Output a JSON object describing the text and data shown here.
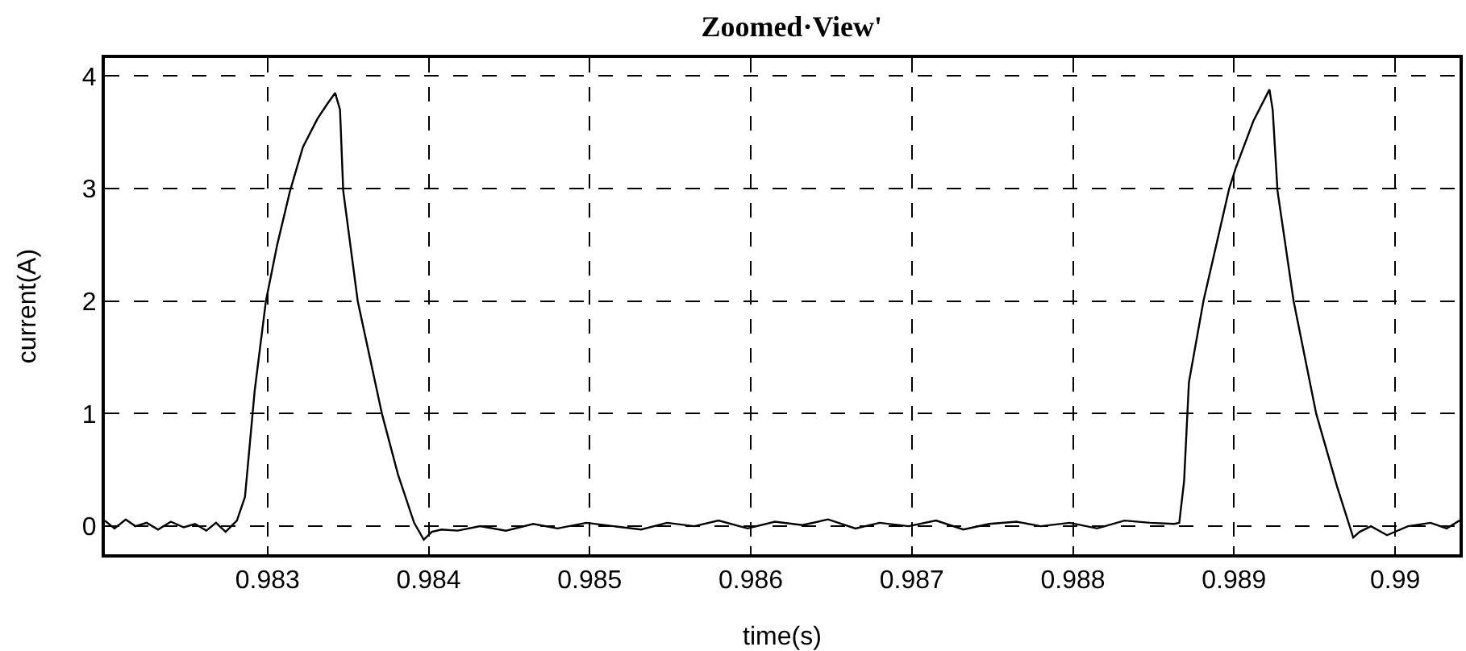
{
  "chart_data": {
    "type": "line",
    "title": "Zoomed·View'",
    "xlabel": "time(s)",
    "ylabel": "current(A)",
    "xlim": [
      0.98199,
      0.9904
    ],
    "ylim": [
      -0.25,
      4.16
    ],
    "xticks": [
      0.983,
      0.984,
      0.985,
      0.986,
      0.987,
      0.988,
      0.989,
      0.99
    ],
    "yticks": [
      0,
      1,
      2,
      3,
      4
    ],
    "grid": true,
    "line_style": "solid",
    "marker": "none",
    "series": [
      {
        "color": "#000000",
        "x": [
          0.98199,
          0.98205,
          0.98212,
          0.98218,
          0.98225,
          0.98232,
          0.9824,
          0.98248,
          0.98255,
          0.98262,
          0.98268,
          0.98274,
          0.98281,
          0.98286,
          0.98292,
          0.98299,
          0.98306,
          0.98314,
          0.98322,
          0.98331,
          0.98337,
          0.98342,
          0.98345,
          0.98347,
          0.98356,
          0.98371,
          0.98381,
          0.98391,
          0.98397,
          0.98402,
          0.98408,
          0.98418,
          0.98432,
          0.98448,
          0.98465,
          0.9848,
          0.98498,
          0.98515,
          0.98532,
          0.98548,
          0.98565,
          0.9858,
          0.98598,
          0.98615,
          0.98632,
          0.98648,
          0.98665,
          0.9868,
          0.98698,
          0.98715,
          0.98732,
          0.98748,
          0.98765,
          0.9878,
          0.98798,
          0.98815,
          0.98832,
          0.98848,
          0.98863,
          0.98866,
          0.98869,
          0.98872,
          0.98881,
          0.98897,
          0.98901,
          0.98912,
          0.98922,
          0.98924,
          0.98927,
          0.98937,
          0.98951,
          0.98964,
          0.98974,
          0.98978,
          0.98985,
          0.98995,
          0.99008,
          0.99022,
          0.99032,
          0.9904
        ],
        "values": [
          0.05,
          -0.02,
          0.06,
          0.0,
          0.03,
          -0.03,
          0.04,
          -0.01,
          0.02,
          -0.04,
          0.03,
          -0.05,
          0.05,
          0.26,
          1.2,
          2.0,
          2.5,
          2.98,
          3.37,
          3.62,
          3.75,
          3.85,
          3.7,
          2.98,
          2.0,
          1.0,
          0.46,
          0.03,
          -0.12,
          -0.05,
          -0.03,
          -0.04,
          0.0,
          -0.04,
          0.02,
          -0.02,
          0.03,
          0.0,
          -0.03,
          0.03,
          0.0,
          0.05,
          -0.02,
          0.04,
          0.01,
          0.06,
          -0.02,
          0.03,
          0.0,
          0.05,
          -0.03,
          0.02,
          0.04,
          0.0,
          0.03,
          -0.02,
          0.05,
          0.03,
          0.02,
          0.03,
          0.4,
          1.28,
          2.0,
          3.0,
          3.18,
          3.6,
          3.88,
          3.7,
          2.98,
          2.0,
          1.0,
          0.35,
          -0.1,
          -0.05,
          0.0,
          -0.08,
          0.0,
          0.03,
          -0.02,
          0.05
        ]
      }
    ]
  }
}
